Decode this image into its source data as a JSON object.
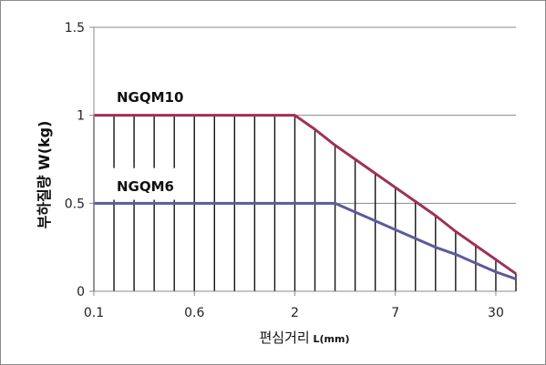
{
  "chart_data": {
    "type": "line",
    "title": "",
    "xlabel_main": "편심거리",
    "xlabel_unit": " L(mm)",
    "ylabel": "부하질량 W(kg)",
    "x_tick_labels": [
      "0.1",
      "0.6",
      "2",
      "7",
      "30"
    ],
    "x_tick_positions": [
      0,
      5,
      10,
      15,
      20
    ],
    "xlim": [
      0,
      21
    ],
    "ylim": [
      0,
      1.5
    ],
    "y_ticks": [
      0,
      0.5,
      1,
      1.5
    ],
    "y_tick_labels": [
      "0",
      "0.5",
      "1",
      "1.5"
    ],
    "grid": "horizontal",
    "series": [
      {
        "name": "NGQM10",
        "color": "#a0305a",
        "x": [
          0,
          10,
          11,
          12,
          13,
          14,
          15,
          16,
          17,
          18,
          19,
          20,
          21
        ],
        "y": [
          1.0,
          1.0,
          0.92,
          0.83,
          0.75,
          0.67,
          0.59,
          0.51,
          0.43,
          0.34,
          0.26,
          0.18,
          0.1
        ]
      },
      {
        "name": "NGQM6",
        "color": "#5b5b9a",
        "x": [
          0,
          12,
          13,
          14,
          15,
          16,
          17,
          18,
          19,
          20,
          21
        ],
        "y": [
          0.5,
          0.5,
          0.45,
          0.4,
          0.35,
          0.3,
          0.25,
          0.21,
          0.16,
          0.11,
          0.07
        ]
      }
    ]
  }
}
